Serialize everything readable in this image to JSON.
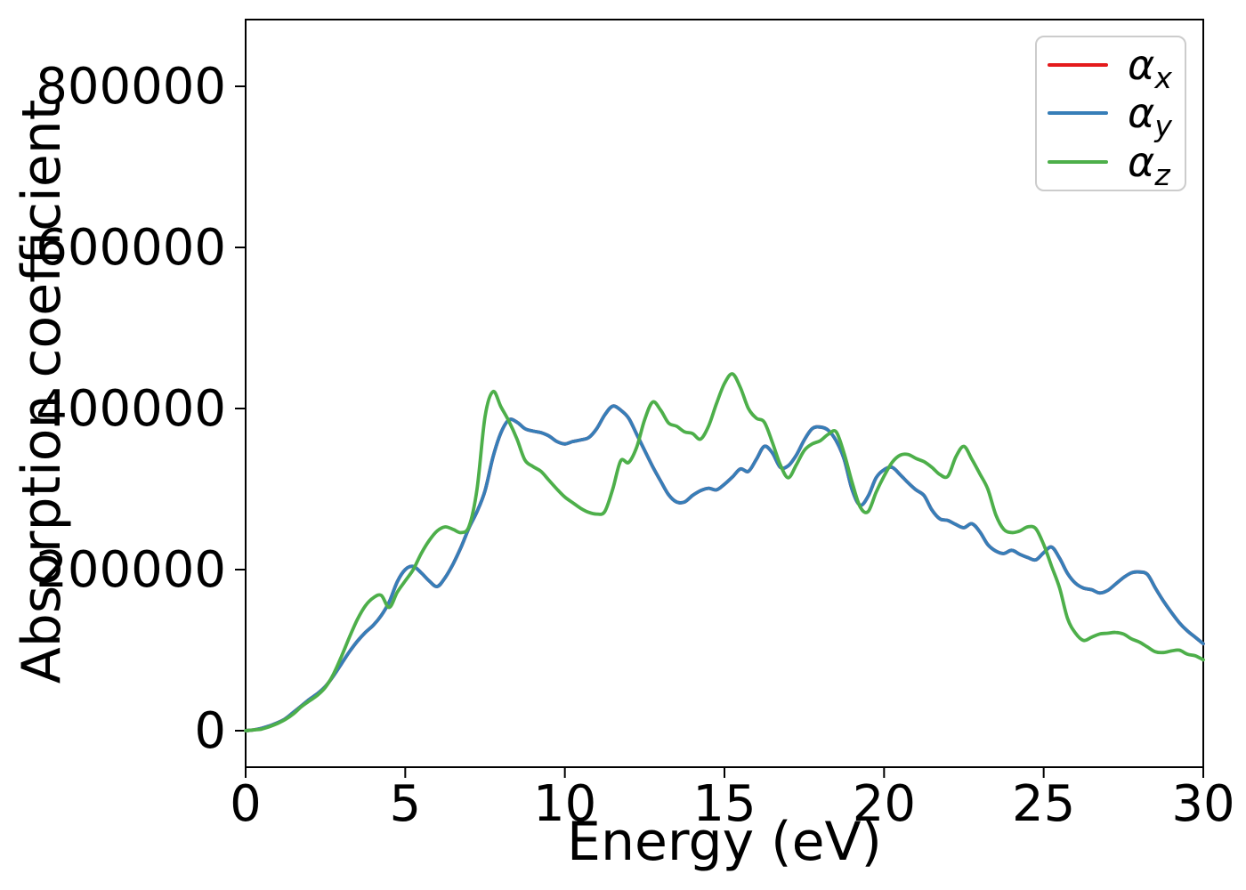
{
  "figure": {
    "background": "#ffffff",
    "spine_color": "#000000"
  },
  "chart_data": {
    "type": "line",
    "title": "",
    "xlabel": "Energy (eV)",
    "ylabel": "Absorption coefficient",
    "xlim": [
      0,
      30
    ],
    "ylim": [
      -45000,
      883000
    ],
    "x_ticks": [
      0,
      5,
      10,
      15,
      20,
      25,
      30
    ],
    "y_ticks": [
      0,
      200000,
      400000,
      600000,
      800000
    ],
    "grid": false,
    "legend": {
      "position": "upper right",
      "frame": true,
      "entries": [
        {
          "symbol": "α",
          "sub": "x",
          "color": "#e41a1c"
        },
        {
          "symbol": "α",
          "sub": "y",
          "color": "#377eb8"
        },
        {
          "symbol": "α",
          "sub": "z",
          "color": "#4daf4a"
        }
      ]
    },
    "x": [
      0,
      0.25,
      0.5,
      0.75,
      1,
      1.25,
      1.5,
      1.75,
      2,
      2.25,
      2.5,
      2.75,
      3,
      3.25,
      3.5,
      3.75,
      4,
      4.25,
      4.5,
      4.75,
      5,
      5.25,
      5.5,
      5.75,
      6,
      6.25,
      6.5,
      6.75,
      7,
      7.25,
      7.5,
      7.75,
      8,
      8.25,
      8.5,
      8.75,
      9,
      9.25,
      9.5,
      9.75,
      10,
      10.25,
      10.5,
      10.75,
      11,
      11.25,
      11.5,
      11.75,
      12,
      12.25,
      12.5,
      12.75,
      13,
      13.25,
      13.5,
      13.75,
      14,
      14.25,
      14.5,
      14.75,
      15,
      15.25,
      15.5,
      15.75,
      16,
      16.25,
      16.5,
      16.75,
      17,
      17.25,
      17.5,
      17.75,
      18,
      18.25,
      18.5,
      18.75,
      19,
      19.25,
      19.5,
      19.75,
      20,
      20.25,
      20.5,
      20.75,
      21,
      21.25,
      21.5,
      21.75,
      22,
      22.25,
      22.5,
      22.75,
      23,
      23.25,
      23.5,
      23.75,
      24,
      24.25,
      24.5,
      24.75,
      25,
      25.25,
      25.5,
      25.75,
      26,
      26.25,
      26.5,
      26.75,
      27,
      27.25,
      27.5,
      27.75,
      28,
      28.25,
      28.5,
      28.75,
      29,
      29.25,
      29.5,
      29.75,
      30
    ],
    "series": [
      {
        "id": "alpha-x",
        "name": "αx",
        "color": "#e41a1c",
        "note": "coincides exactly with αy and is hidden beneath it",
        "values": [
          0,
          1000,
          3000,
          6000,
          10000,
          15000,
          23000,
          31000,
          39000,
          46000,
          55000,
          68000,
          83000,
          98000,
          111000,
          122000,
          131000,
          143000,
          160000,
          185000,
          200000,
          204000,
          196000,
          186000,
          179000,
          190000,
          207000,
          228000,
          252000,
          272000,
          298000,
          340000,
          370000,
          386000,
          383000,
          375000,
          372000,
          370000,
          366000,
          359000,
          356000,
          359000,
          361000,
          364000,
          375000,
          392000,
          403000,
          398000,
          388000,
          368000,
          348000,
          328000,
          310000,
          293000,
          284000,
          284000,
          292000,
          298000,
          301000,
          299000,
          306000,
          315000,
          325000,
          322000,
          337000,
          353000,
          345000,
          327000,
          329000,
          342000,
          361000,
          375000,
          377000,
          373000,
          360000,
          337000,
          299000,
          280000,
          291000,
          314000,
          324000,
          327000,
          318000,
          308000,
          299000,
          292000,
          274000,
          263000,
          261000,
          256000,
          252000,
          257000,
          247000,
          231000,
          223000,
          220000,
          224000,
          219000,
          215000,
          212000,
          221000,
          228000,
          214000,
          195000,
          183000,
          177000,
          175000,
          171000,
          174000,
          182000,
          190000,
          196000,
          197000,
          194000,
          177000,
          161000,
          147000,
          134000,
          124000,
          116000,
          108000
        ]
      },
      {
        "id": "alpha-y",
        "name": "αy",
        "color": "#377eb8",
        "values": [
          0,
          1000,
          3000,
          6000,
          10000,
          15000,
          23000,
          31000,
          39000,
          46000,
          55000,
          68000,
          83000,
          98000,
          111000,
          122000,
          131000,
          143000,
          160000,
          185000,
          200000,
          204000,
          196000,
          186000,
          179000,
          190000,
          207000,
          228000,
          252000,
          272000,
          298000,
          340000,
          370000,
          386000,
          383000,
          375000,
          372000,
          370000,
          366000,
          359000,
          356000,
          359000,
          361000,
          364000,
          375000,
          392000,
          403000,
          398000,
          388000,
          368000,
          348000,
          328000,
          310000,
          293000,
          284000,
          284000,
          292000,
          298000,
          301000,
          299000,
          306000,
          315000,
          325000,
          322000,
          337000,
          353000,
          345000,
          327000,
          329000,
          342000,
          361000,
          375000,
          377000,
          373000,
          360000,
          337000,
          299000,
          280000,
          291000,
          314000,
          324000,
          327000,
          318000,
          308000,
          299000,
          292000,
          274000,
          263000,
          261000,
          256000,
          252000,
          257000,
          247000,
          231000,
          223000,
          220000,
          224000,
          219000,
          215000,
          212000,
          221000,
          228000,
          214000,
          195000,
          183000,
          177000,
          175000,
          171000,
          174000,
          182000,
          190000,
          196000,
          197000,
          194000,
          177000,
          161000,
          147000,
          134000,
          124000,
          116000,
          108000
        ]
      },
      {
        "id": "alpha-z",
        "name": "αz",
        "color": "#4daf4a",
        "values": [
          0,
          1000,
          2000,
          5000,
          9000,
          14000,
          21000,
          30000,
          37000,
          44000,
          54000,
          70000,
          92000,
          116000,
          138000,
          155000,
          165000,
          168000,
          153000,
          172000,
          186000,
          200000,
          220000,
          236000,
          248000,
          253000,
          250000,
          246000,
          254000,
          300000,
          390000,
          421000,
          402000,
          384000,
          362000,
          336000,
          328000,
          322000,
          311000,
          300000,
          290000,
          283000,
          276000,
          271000,
          269000,
          272000,
          300000,
          335000,
          333000,
          352000,
          386000,
          408000,
          398000,
          382000,
          378000,
          371000,
          369000,
          362000,
          378000,
          406000,
          431000,
          443000,
          426000,
          400000,
          388000,
          383000,
          358000,
          330000,
          314000,
          330000,
          348000,
          356000,
          360000,
          368000,
          371000,
          344000,
          308000,
          278000,
          272000,
          296000,
          316000,
          333000,
          342000,
          343000,
          338000,
          334000,
          327000,
          318000,
          316000,
          340000,
          353000,
          337000,
          319000,
          300000,
          268000,
          250000,
          246000,
          248000,
          253000,
          251000,
          231000,
          204000,
          177000,
          139000,
          121000,
          112000,
          116000,
          120000,
          121000,
          122000,
          120000,
          114000,
          110000,
          104000,
          98000,
          97000,
          99000,
          100000,
          95000,
          93000,
          88000
        ]
      }
    ]
  }
}
